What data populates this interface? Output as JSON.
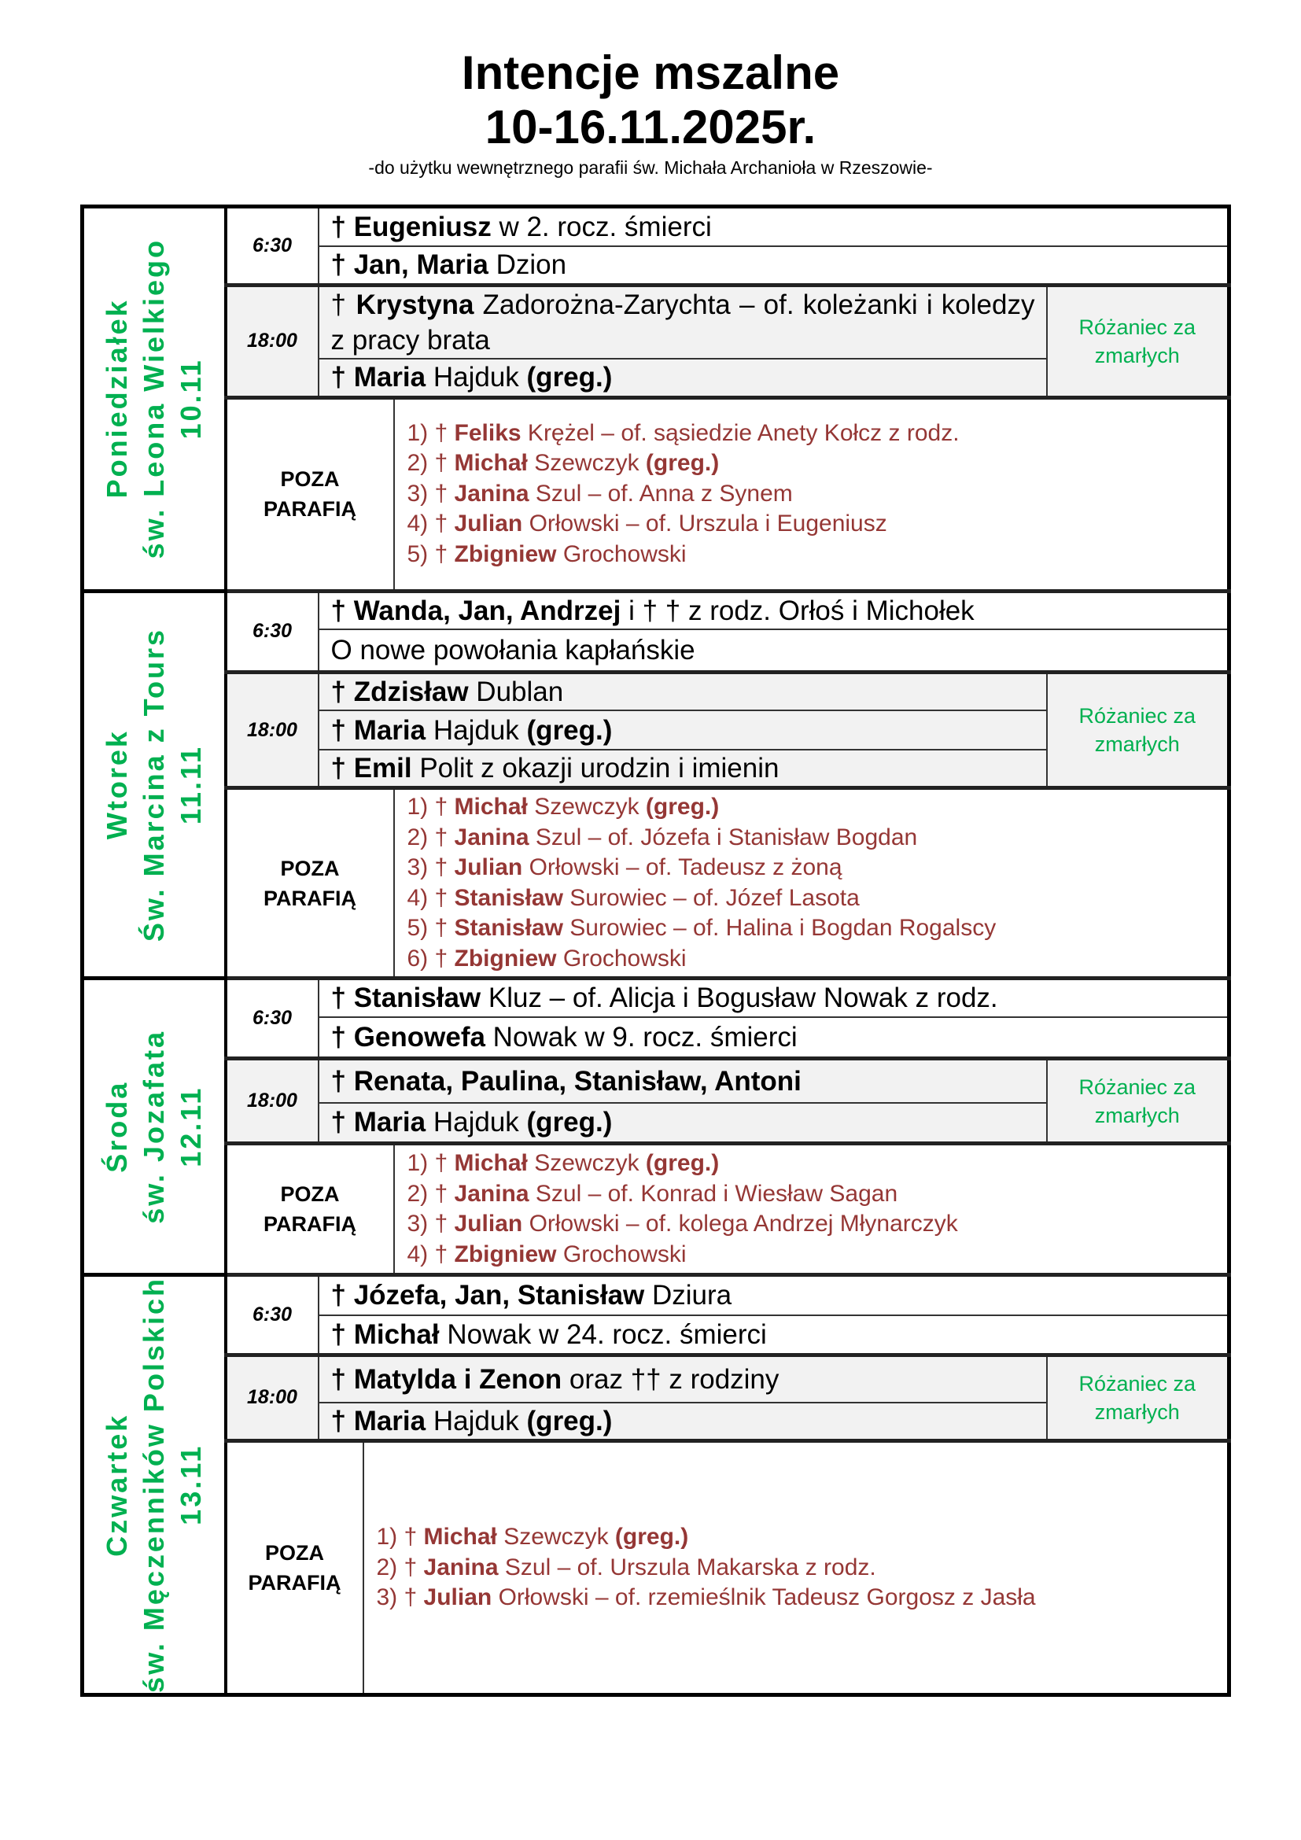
{
  "header": {
    "title": "Intencje mszalne",
    "date_range": "10-16.11.2025r.",
    "subtitle": "-do użytku wewnętrznego parafii św. Michała Archanioła w Rzeszowie-"
  },
  "colors": {
    "green": "#00b050",
    "red": "#953735",
    "grey": "#f2f2f2"
  },
  "days": [
    {
      "label": [
        "Poniedziałek",
        "św. Leona Wielkiego",
        "10.11"
      ],
      "morning": {
        "time": "6:30",
        "lines": [
          [
            [
              "† Eugeniusz",
              1
            ],
            [
              " w 2. rocz. śmierci",
              0
            ]
          ],
          [
            [
              "† Jan, Maria",
              1
            ],
            [
              " Dzion",
              0
            ]
          ]
        ]
      },
      "evening": {
        "time": "18:00",
        "note": "Różaniec za zmarłych",
        "lines": [
          [
            [
              "† ",
              0
            ],
            [
              "Krystyna",
              1
            ],
            [
              " Zadorożna-Zarychta – of. koleżanki i koledzy z pracy brata",
              0
            ]
          ],
          [
            [
              "† Maria",
              1
            ],
            [
              " Hajduk ",
              0
            ],
            [
              "(greg.)",
              1
            ]
          ]
        ]
      },
      "outside": {
        "label": "POZA PARAFIĄ",
        "items": [
          [
            [
              "1) † ",
              0
            ],
            [
              "Feliks",
              1
            ],
            [
              " Krężel – of. sąsiedzie Anety Kołcz z rodz.",
              0
            ]
          ],
          [
            [
              "2) † ",
              0
            ],
            [
              "Michał",
              1
            ],
            [
              " Szewczyk ",
              0
            ],
            [
              "(greg.)",
              1
            ]
          ],
          [
            [
              "3) † ",
              0
            ],
            [
              "Janina",
              1
            ],
            [
              " Szul – of. Anna z Synem",
              0
            ]
          ],
          [
            [
              "4) † ",
              0
            ],
            [
              "Julian",
              1
            ],
            [
              " Orłowski – of. Urszula i Eugeniusz",
              0
            ]
          ],
          [
            [
              "5) † ",
              0
            ],
            [
              "Zbigniew",
              1
            ],
            [
              " Grochowski",
              0
            ]
          ]
        ]
      }
    },
    {
      "label": [
        "Wtorek",
        "Św. Marcina z Tours",
        "11.11"
      ],
      "morning": {
        "time": "6:30",
        "lines": [
          [
            [
              "† Wanda, Jan, Andrzej",
              1
            ],
            [
              " i † †  z rodz. Orłoś i Michołek",
              0
            ]
          ],
          [
            [
              "O nowe powołania kapłańskie",
              0
            ]
          ]
        ]
      },
      "evening": {
        "time": "18:00",
        "note": "Różaniec za zmarłych",
        "lines": [
          [
            [
              "† Zdzisław",
              1
            ],
            [
              " Dublan",
              0
            ]
          ],
          [
            [
              "† Maria",
              1
            ],
            [
              " Hajduk ",
              0
            ],
            [
              "(greg.)",
              1
            ]
          ],
          [
            [
              "† Emil",
              1
            ],
            [
              " Polit z okazji urodzin i imienin",
              0
            ]
          ]
        ]
      },
      "outside": {
        "label": "POZA PARAFIĄ",
        "items": [
          [
            [
              "1) † ",
              0
            ],
            [
              "Michał",
              1
            ],
            [
              " Szewczyk ",
              0
            ],
            [
              "(greg.)",
              1
            ]
          ],
          [
            [
              "2) † ",
              0
            ],
            [
              "Janina",
              1
            ],
            [
              " Szul – of. Józefa i Stanisław Bogdan",
              0
            ]
          ],
          [
            [
              "3) † ",
              0
            ],
            [
              "Julian",
              1
            ],
            [
              " Orłowski – of. Tadeusz z żoną",
              0
            ]
          ],
          [
            [
              "4) †  ",
              0
            ],
            [
              "Stanisław",
              1
            ],
            [
              " Surowiec – of. Józef Lasota",
              0
            ]
          ],
          [
            [
              "5) † ",
              0
            ],
            [
              "Stanisław",
              1
            ],
            [
              " Surowiec – of. Halina i Bogdan Rogalscy",
              0
            ]
          ],
          [
            [
              "6) † ",
              0
            ],
            [
              "Zbigniew",
              1
            ],
            [
              " Grochowski",
              0
            ]
          ]
        ]
      }
    },
    {
      "label": [
        "Środa",
        "św. Jozafata",
        "12.11"
      ],
      "morning": {
        "time": "6:30",
        "lines": [
          [
            [
              "† Stanisław",
              1
            ],
            [
              " Kluz – of. Alicja i Bogusław Nowak z rodz.",
              0
            ]
          ],
          [
            [
              "† Genowefa",
              1
            ],
            [
              " Nowak w 9. rocz. śmierci",
              0
            ]
          ]
        ]
      },
      "evening": {
        "time": "18:00",
        "note": "Różaniec za zmarłych",
        "lines": [
          [
            [
              "† Renata, Paulina, Stanisław, Antoni",
              1
            ]
          ],
          [
            [
              "† Maria",
              1
            ],
            [
              " Hajduk ",
              0
            ],
            [
              "(greg.)",
              1
            ]
          ]
        ]
      },
      "outside": {
        "label": "POZA PARAFIĄ",
        "items": [
          [
            [
              "1) † ",
              0
            ],
            [
              "Michał",
              1
            ],
            [
              " Szewczyk ",
              0
            ],
            [
              "(greg.)",
              1
            ]
          ],
          [
            [
              "2) † ",
              0
            ],
            [
              "Janina",
              1
            ],
            [
              " Szul – of. Konrad i Wiesław Sagan",
              0
            ]
          ],
          [
            [
              "3) † ",
              0
            ],
            [
              "Julian",
              1
            ],
            [
              " Orłowski – of. kolega Andrzej Młynarczyk",
              0
            ]
          ],
          [
            [
              "4) † ",
              0
            ],
            [
              "Zbigniew",
              1
            ],
            [
              " Grochowski",
              0
            ]
          ]
        ]
      }
    },
    {
      "label": [
        "Czwartek",
        "św. Męczenników Polskich",
        "13.11"
      ],
      "morning": {
        "time": "6:30",
        "lines": [
          [
            [
              "† Józefa, Jan, Stanisław",
              1
            ],
            [
              " Dziura",
              0
            ]
          ],
          [
            [
              "† Michał",
              1
            ],
            [
              " Nowak w 24. rocz. śmierci",
              0
            ]
          ]
        ]
      },
      "evening": {
        "time": "18:00",
        "note": "Różaniec za zmarłych",
        "lines": [
          [
            [
              "† Matylda i Zenon",
              1
            ],
            [
              " oraz †† z rodziny",
              0
            ]
          ],
          [
            [
              "† Maria",
              1
            ],
            [
              " Hajduk ",
              0
            ],
            [
              "(greg.)",
              1
            ]
          ]
        ]
      },
      "outside": {
        "label": "POZA PARAFIĄ",
        "items": [
          [
            [
              "1) † ",
              0
            ],
            [
              "Michał",
              1
            ],
            [
              " Szewczyk ",
              0
            ],
            [
              "(greg.)",
              1
            ]
          ],
          [
            [
              "2) † ",
              0
            ],
            [
              "Janina",
              1
            ],
            [
              " Szul – of. Urszula Makarska z rodz.",
              0
            ]
          ],
          [
            [
              "3) † ",
              0
            ],
            [
              "Julian",
              1
            ],
            [
              " Orłowski – of. rzemieślnik Tadeusz Gorgosz z Jasła",
              0
            ]
          ]
        ]
      }
    }
  ]
}
